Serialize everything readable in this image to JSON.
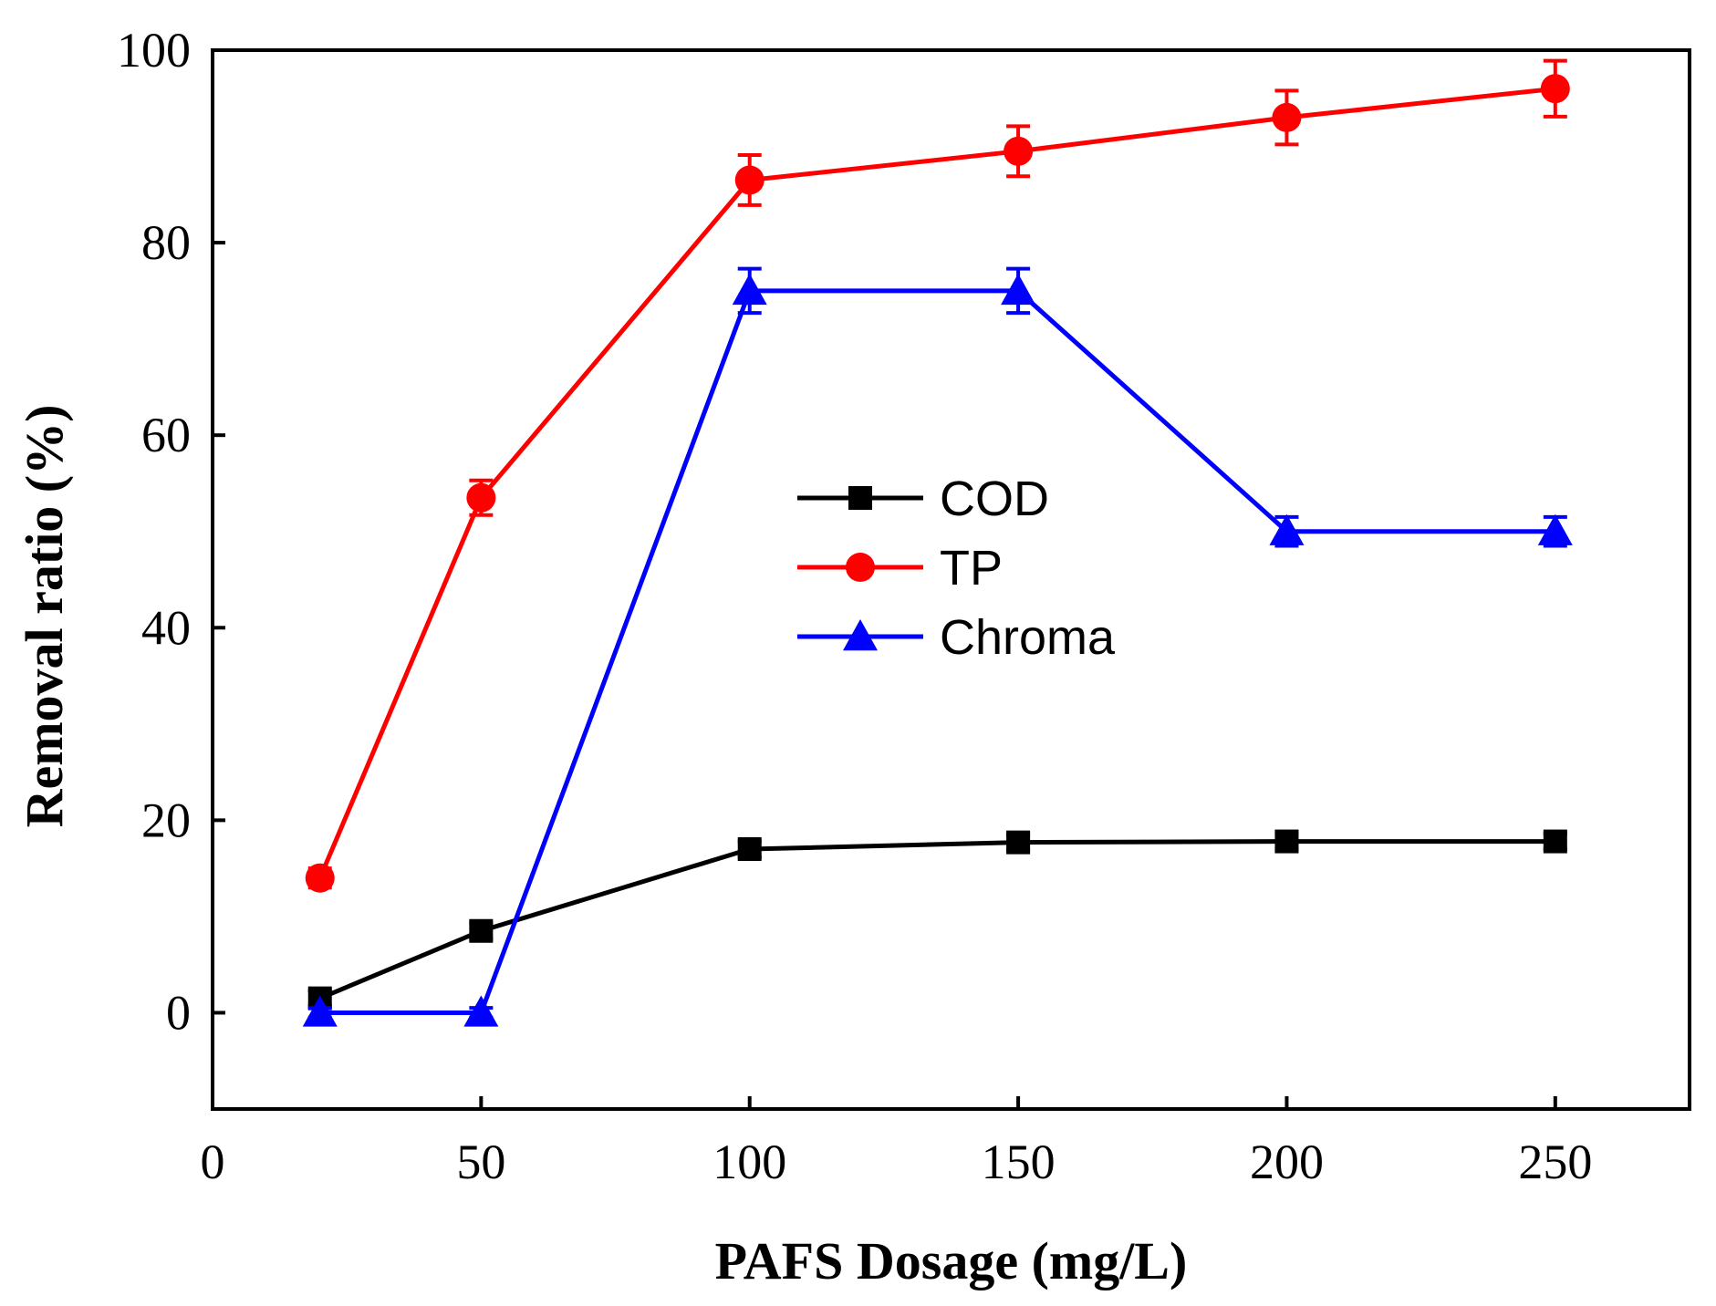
{
  "chart_data": {
    "type": "line",
    "title": "",
    "xlabel": "PAFS Dosage (mg/L)",
    "ylabel": "Removal ratio (%)",
    "xlim": [
      0,
      275
    ],
    "ylim": [
      -10,
      100
    ],
    "xticks": [
      0,
      50,
      100,
      150,
      200,
      250
    ],
    "yticks": [
      0,
      20,
      40,
      60,
      80,
      100
    ],
    "x": [
      20,
      50,
      100,
      150,
      200,
      250
    ],
    "legend_position": "center",
    "series": [
      {
        "name": "COD",
        "color": "#000000",
        "marker": "square",
        "values": [
          1.5,
          8.5,
          17,
          17.7,
          17.8,
          17.8
        ],
        "errors": [
          0.8,
          0.8,
          0.8,
          0.8,
          0.8,
          0.8
        ]
      },
      {
        "name": "TP",
        "color": "#ff0000",
        "marker": "circle",
        "values": [
          14,
          53.5,
          86.5,
          89.5,
          93,
          96
        ],
        "errors": [
          1,
          1.8,
          2.6,
          2.6,
          2.8,
          2.9
        ]
      },
      {
        "name": "Chroma",
        "color": "#0000ff",
        "marker": "triangle",
        "values": [
          0,
          0,
          75,
          75,
          50,
          50
        ],
        "errors": [
          0.5,
          0.5,
          2.3,
          2.3,
          1.5,
          1.5
        ]
      }
    ]
  }
}
